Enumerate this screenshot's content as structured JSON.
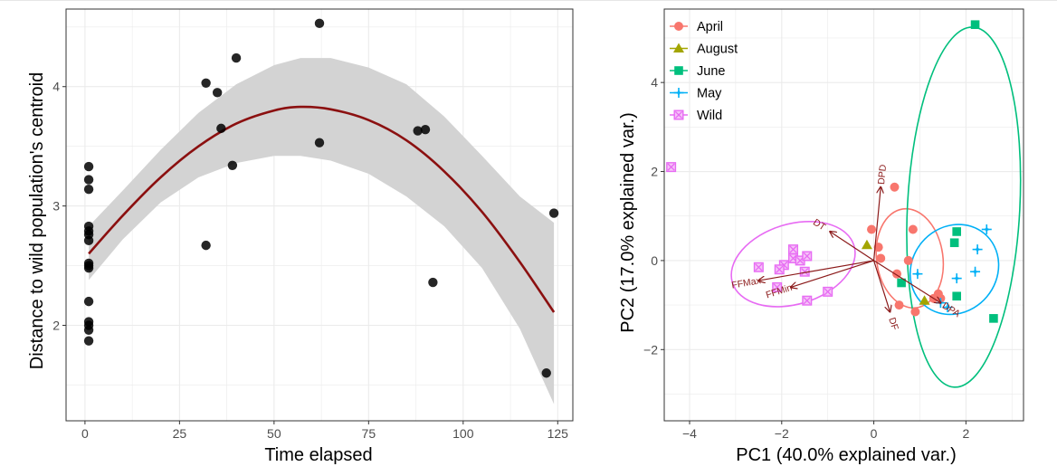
{
  "chart_data": [
    {
      "type": "scatter",
      "xlabel": "Time elapsed",
      "ylabel": "Distance to wild population's centroid",
      "xlim": [
        -5,
        129
      ],
      "ylim": [
        1.2,
        4.65
      ],
      "x_ticks": [
        0,
        25,
        50,
        75,
        100,
        125
      ],
      "x_tick_labels": [
        "0",
        "25",
        "50",
        "75",
        "100",
        "125"
      ],
      "y_ticks": [
        2,
        3,
        4
      ],
      "y_tick_labels": [
        "2",
        "3",
        "4"
      ],
      "grid": true,
      "colors": {
        "points": "#000000",
        "fit": "#8b1010",
        "band": "#d3d3d3",
        "grid": "#ebebeb",
        "panel_border": "#333333",
        "axis_text": "#4d4d4d"
      },
      "points": [
        {
          "x": 1,
          "y": 3.33
        },
        {
          "x": 1,
          "y": 3.22
        },
        {
          "x": 1,
          "y": 3.14
        },
        {
          "x": 1,
          "y": 2.83
        },
        {
          "x": 1,
          "y": 2.79
        },
        {
          "x": 1,
          "y": 2.76
        },
        {
          "x": 1,
          "y": 2.71
        },
        {
          "x": 1,
          "y": 2.52
        },
        {
          "x": 1,
          "y": 2.5
        },
        {
          "x": 1,
          "y": 2.48
        },
        {
          "x": 1,
          "y": 2.2
        },
        {
          "x": 1,
          "y": 2.03
        },
        {
          "x": 1,
          "y": 2.0
        },
        {
          "x": 1,
          "y": 1.96
        },
        {
          "x": 1,
          "y": 1.87
        },
        {
          "x": 32,
          "y": 4.03
        },
        {
          "x": 32,
          "y": 2.67
        },
        {
          "x": 35,
          "y": 3.95
        },
        {
          "x": 36,
          "y": 3.65
        },
        {
          "x": 39,
          "y": 3.34
        },
        {
          "x": 40,
          "y": 4.24
        },
        {
          "x": 62,
          "y": 4.53
        },
        {
          "x": 62,
          "y": 3.53
        },
        {
          "x": 88,
          "y": 3.63
        },
        {
          "x": 90,
          "y": 3.64
        },
        {
          "x": 92,
          "y": 2.36
        },
        {
          "x": 122,
          "y": 1.6
        },
        {
          "x": 124,
          "y": 2.94
        }
      ],
      "fit": {
        "x": [
          1,
          10,
          20,
          30,
          40,
          50,
          57,
          65,
          75,
          85,
          95,
          105,
          115,
          124
        ],
        "y": [
          2.6,
          2.92,
          3.24,
          3.5,
          3.69,
          3.8,
          3.83,
          3.81,
          3.72,
          3.55,
          3.29,
          2.95,
          2.53,
          2.11
        ]
      },
      "band": {
        "x": [
          1,
          10,
          20,
          30,
          40,
          50,
          57,
          65,
          75,
          85,
          95,
          105,
          115,
          124
        ],
        "lower": [
          2.38,
          2.72,
          3.03,
          3.24,
          3.36,
          3.42,
          3.42,
          3.38,
          3.27,
          3.08,
          2.83,
          2.48,
          1.97,
          1.34
        ],
        "upper": [
          2.83,
          3.13,
          3.47,
          3.78,
          4.02,
          4.18,
          4.24,
          4.24,
          4.16,
          4.02,
          3.75,
          3.42,
          3.08,
          2.86
        ]
      }
    },
    {
      "type": "scatter",
      "xlabel": "PC1 (40.0% explained var.)",
      "ylabel": "PC2 (17.0% explained var.)",
      "xlim": [
        -4.55,
        3.25
      ],
      "ylim": [
        -3.6,
        5.65
      ],
      "x_ticks": [
        -4,
        -2,
        0,
        2
      ],
      "x_tick_labels": [
        "−4",
        "−2",
        "0",
        "2"
      ],
      "y_ticks": [
        -2,
        0,
        2,
        4
      ],
      "y_tick_labels": [
        "−2",
        "0",
        "2",
        "4"
      ],
      "grid": true,
      "legend_position": "top-left",
      "legend": [
        "April",
        "August",
        "June",
        "May",
        "Wild"
      ],
      "colors": {
        "arrow": "#8b1a1a",
        "grid": "#ebebeb",
        "panel_border": "#333333",
        "axis_text": "#4d4d4d"
      },
      "series": [
        {
          "name": "April",
          "color": "#f8766d",
          "marker": "circle",
          "points": [
            {
              "x": 0.45,
              "y": 1.65
            },
            {
              "x": -0.05,
              "y": 0.7
            },
            {
              "x": 0.85,
              "y": 0.7
            },
            {
              "x": 0.1,
              "y": 0.3
            },
            {
              "x": 0.15,
              "y": 0.05
            },
            {
              "x": 0.75,
              "y": 0.0
            },
            {
              "x": 0.5,
              "y": -0.3
            },
            {
              "x": 0.55,
              "y": -1.0
            },
            {
              "x": 0.9,
              "y": -1.15
            },
            {
              "x": 1.3,
              "y": -0.85
            },
            {
              "x": 1.4,
              "y": -0.75
            },
            {
              "x": 1.45,
              "y": -0.85
            }
          ],
          "ellipse": {
            "cx": 0.78,
            "cy": 0.05,
            "rx": 0.72,
            "ry": 1.12,
            "angle": -8
          }
        },
        {
          "name": "August",
          "color": "#a3a500",
          "marker": "triangle",
          "points": [
            {
              "x": -0.15,
              "y": 0.35
            },
            {
              "x": 1.1,
              "y": -0.9
            }
          ]
        },
        {
          "name": "June",
          "color": "#00bf7d",
          "marker": "square",
          "points": [
            {
              "x": 2.2,
              "y": 5.3
            },
            {
              "x": 1.8,
              "y": 0.65
            },
            {
              "x": 1.75,
              "y": 0.4
            },
            {
              "x": 0.6,
              "y": -0.5
            },
            {
              "x": 1.8,
              "y": -0.8
            },
            {
              "x": 2.6,
              "y": -1.3
            }
          ],
          "ellipse": {
            "cx": 1.95,
            "cy": 1.2,
            "rx": 1.22,
            "ry": 4.05,
            "angle": 3
          }
        },
        {
          "name": "May",
          "color": "#00b0f6",
          "marker": "star",
          "points": [
            {
              "x": 2.45,
              "y": 0.7
            },
            {
              "x": 2.25,
              "y": 0.25
            },
            {
              "x": 2.2,
              "y": -0.25
            },
            {
              "x": 1.8,
              "y": -0.4
            },
            {
              "x": 0.95,
              "y": -0.3
            },
            {
              "x": 1.45,
              "y": -0.95
            },
            {
              "x": 1.6,
              "y": -1.05
            }
          ],
          "ellipse": {
            "cx": 1.75,
            "cy": -0.2,
            "rx": 0.92,
            "ry": 1.05,
            "angle": 40
          }
        },
        {
          "name": "Wild",
          "color": "#e76bf3",
          "marker": "boxed-x",
          "points": [
            {
              "x": -4.4,
              "y": 2.1
            },
            {
              "x": -1.75,
              "y": 0.25
            },
            {
              "x": -1.75,
              "y": 0.05
            },
            {
              "x": -1.6,
              "y": 0.0
            },
            {
              "x": -1.45,
              "y": 0.1
            },
            {
              "x": -1.95,
              "y": -0.1
            },
            {
              "x": -2.05,
              "y": -0.2
            },
            {
              "x": -2.5,
              "y": -0.15
            },
            {
              "x": -1.5,
              "y": -0.25
            },
            {
              "x": -2.1,
              "y": -0.6
            },
            {
              "x": -1.0,
              "y": -0.7
            },
            {
              "x": -1.45,
              "y": -0.9
            }
          ],
          "ellipse": {
            "cx": -1.75,
            "cy": -0.08,
            "rx": 1.38,
            "ry": 0.9,
            "angle": -17
          }
        }
      ],
      "loadings": [
        {
          "label": "DPD",
          "x": 0.15,
          "y": 1.65
        },
        {
          "label": "DT",
          "x": -0.95,
          "y": 0.65
        },
        {
          "label": "FFMax",
          "x": -2.5,
          "y": -0.45
        },
        {
          "label": "FFMin",
          "x": -1.8,
          "y": -0.6
        },
        {
          "label": "DF",
          "x": 0.35,
          "y": -1.15
        },
        {
          "label": "DPA",
          "x": 1.45,
          "y": -0.95
        }
      ]
    }
  ]
}
